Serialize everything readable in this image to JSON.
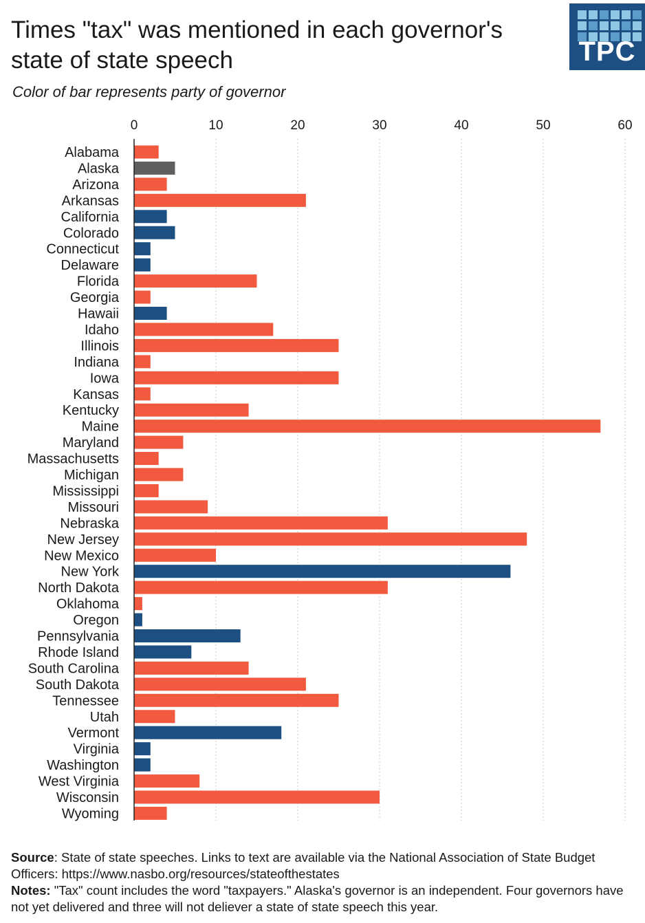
{
  "header": {
    "title_line1": "Times \"tax\" was mentioned in each governor's",
    "title_line2": "state of state speech",
    "subtitle": "Color of bar represents party of governor",
    "logo_text": "TPC"
  },
  "colors": {
    "republican": "#f15a3f",
    "democrat": "#1d4f82",
    "independent": "#5f5f5f",
    "logo_bg": "#1d4f82",
    "logo_squares": "#8fc8e4"
  },
  "chart_data": {
    "type": "bar",
    "orientation": "horizontal",
    "title": "Times \"tax\" was mentioned in each governor's state of state speech",
    "subtitle": "Color of bar represents party of governor",
    "xlabel": "",
    "ylabel": "",
    "xlim": [
      0,
      60
    ],
    "x_ticks": [
      0,
      10,
      20,
      30,
      40,
      50,
      60
    ],
    "grid": true,
    "legend": "none",
    "categories": [
      "Alabama",
      "Alaska",
      "Arizona",
      "Arkansas",
      "California",
      "Colorado",
      "Connecticut",
      "Delaware",
      "Florida",
      "Georgia",
      "Hawaii",
      "Idaho",
      "Illinois",
      "Indiana",
      "Iowa",
      "Kansas",
      "Kentucky",
      "Maine",
      "Maryland",
      "Massachusetts",
      "Michigan",
      "Mississippi",
      "Missouri",
      "Nebraska",
      "New Jersey",
      "New Mexico",
      "New York",
      "North Dakota",
      "Oklahoma",
      "Oregon",
      "Pennsylvania",
      "Rhode Island",
      "South Carolina",
      "South Dakota",
      "Tennessee",
      "Utah",
      "Vermont",
      "Virginia",
      "Washington",
      "West Virginia",
      "Wisconsin",
      "Wyoming"
    ],
    "values": [
      3,
      5,
      4,
      21,
      4,
      5,
      2,
      2,
      15,
      2,
      4,
      17,
      25,
      2,
      25,
      2,
      14,
      57,
      6,
      3,
      6,
      3,
      9,
      31,
      48,
      10,
      46,
      31,
      1,
      1,
      13,
      7,
      14,
      21,
      25,
      5,
      18,
      2,
      2,
      8,
      30,
      4
    ],
    "party": [
      "R",
      "I",
      "R",
      "R",
      "D",
      "D",
      "D",
      "D",
      "R",
      "R",
      "D",
      "R",
      "R",
      "R",
      "R",
      "R",
      "R",
      "R",
      "R",
      "R",
      "R",
      "R",
      "R",
      "R",
      "R",
      "R",
      "D",
      "R",
      "R",
      "D",
      "D",
      "D",
      "R",
      "R",
      "R",
      "R",
      "D",
      "D",
      "D",
      "R",
      "R",
      "R"
    ]
  },
  "footer": {
    "source_label": "Source",
    "source_text": ": State of state speeches. Links to text are available via the National Association of State Budget Officers: https://www.nasbo.org/resources/stateofthestates",
    "notes_label": "Notes:",
    "notes_text": " \"Tax\" count  includes the word \"taxpayers.\" Alaska's governor is an independent. Four governors have not yet delivered and three will not deliever a state of state speech this year."
  }
}
